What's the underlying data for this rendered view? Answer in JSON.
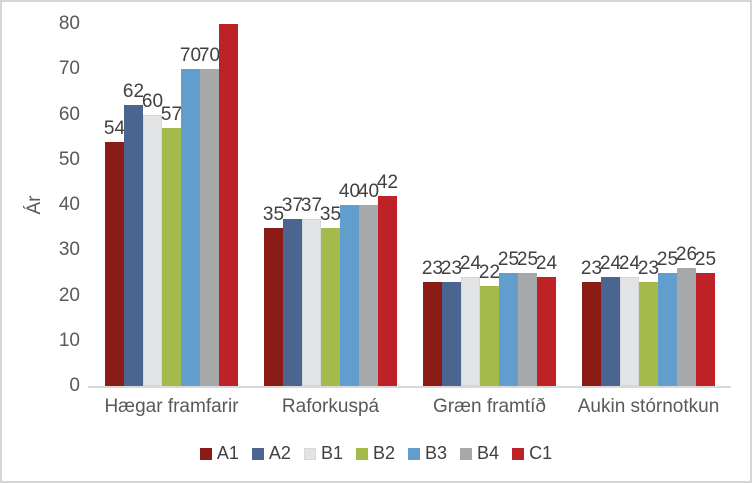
{
  "chart_data": {
    "type": "bar",
    "title": "",
    "xlabel": "",
    "ylabel": "Ár",
    "ylim": [
      0,
      80
    ],
    "yticks": [
      0,
      10,
      20,
      30,
      40,
      50,
      60,
      70,
      80
    ],
    "grid": false,
    "legend_position": "bottom",
    "categories": [
      "Hægar framfarir",
      "Raforkuspá",
      "Græn framtíð",
      "Aukin stórnotkun"
    ],
    "series": [
      {
        "name": "A1",
        "color": "#8b1b17",
        "values": [
          54,
          35,
          23,
          23
        ],
        "labels": [
          "54",
          "35",
          "23",
          "23"
        ]
      },
      {
        "name": "A2",
        "color": "#4a6590",
        "values": [
          62,
          37,
          23,
          24
        ],
        "labels": [
          "62",
          "37",
          "23",
          "24"
        ]
      },
      {
        "name": "B1",
        "color": "#e2e3e4",
        "border": "#d7d8d9",
        "values": [
          60,
          37,
          24,
          24
        ],
        "labels": [
          "60",
          "37",
          "24",
          "24"
        ]
      },
      {
        "name": "B2",
        "color": "#a4ba4a",
        "values": [
          57,
          35,
          22,
          23
        ],
        "labels": [
          "57",
          "35",
          "22",
          "23"
        ]
      },
      {
        "name": "B3",
        "color": "#619ecd",
        "values": [
          70,
          40,
          25,
          25
        ],
        "labels": [
          "70",
          "40",
          "25",
          "25"
        ]
      },
      {
        "name": "B4",
        "color": "#a7a8aa",
        "values": [
          70,
          40,
          25,
          26
        ],
        "labels": [
          "70",
          "40",
          "25",
          "26"
        ]
      },
      {
        "name": "C1",
        "color": "#be2126",
        "values": [
          80,
          42,
          24,
          25
        ],
        "labels": [
          "",
          "42",
          "24",
          "25"
        ]
      }
    ],
    "colors": {
      "axis_text": "#595959",
      "data_label_text": "#404040",
      "axis_line": "#d9d9d9",
      "chart_border": "#d6d6d6"
    }
  }
}
